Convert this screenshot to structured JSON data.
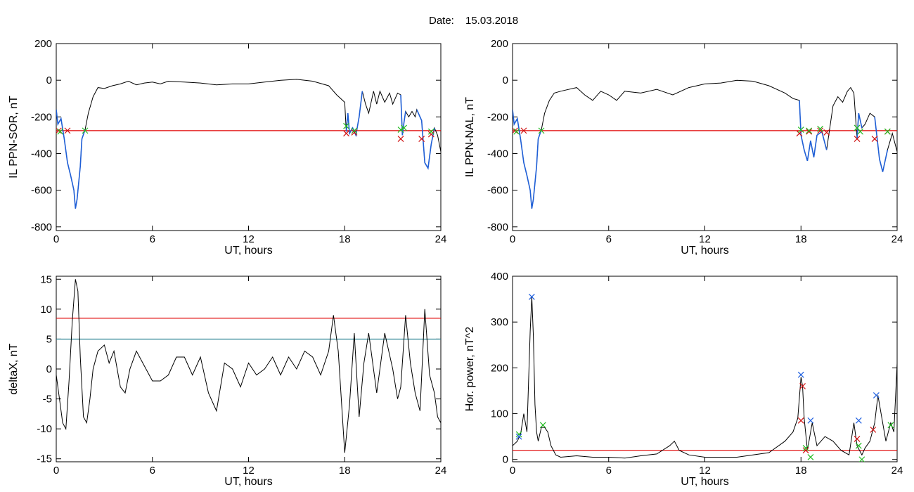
{
  "figure": {
    "date_label": "Date:",
    "date_value": "15.03.2018"
  },
  "colors": {
    "curve": "#000000",
    "highlight": "#1f5fd6",
    "threshold": "#e00000",
    "threshold2": "#1a7a8a",
    "marker_red": "#d01010",
    "marker_green": "#22bb22",
    "marker_blue": "#2060e0"
  },
  "chart_data": [
    {
      "type": "line",
      "ylabel": "IL PPN-SOR, nT",
      "xlabel": "UT, hours",
      "xlim": [
        0,
        24
      ],
      "ylim": [
        -820,
        200
      ],
      "xticks": [
        0,
        6,
        12,
        18,
        24
      ],
      "yticks": [
        -800,
        -600,
        -400,
        -200,
        0,
        200
      ],
      "threshold": -275,
      "series": [
        {
          "x": [
            0,
            0.1,
            0.3,
            0.5,
            0.7,
            0.9,
            1.1,
            1.2,
            1.3,
            1.5,
            1.6,
            1.8,
            2.0,
            2.3,
            2.6,
            3.0,
            3.5,
            4.0,
            4.5,
            5.0,
            5.5,
            6.0,
            6.5,
            7.0,
            8.0,
            9.0,
            10.0,
            11.0,
            12.0,
            13.0,
            14.0,
            15.0,
            16.0,
            17.0,
            17.5,
            18.0,
            18.1,
            18.2,
            18.3,
            18.5,
            18.7,
            18.9,
            19.1,
            19.3,
            19.5,
            19.8,
            20.0,
            20.2,
            20.5,
            20.8,
            21.0,
            21.3,
            21.5,
            21.6,
            21.7,
            21.8,
            22.0,
            22.2,
            22.4,
            22.5,
            22.8,
            23.0,
            23.2,
            23.4,
            23.6,
            23.8,
            24.0
          ],
          "y": [
            -160,
            -240,
            -210,
            -320,
            -450,
            -520,
            -600,
            -700,
            -650,
            -470,
            -320,
            -270,
            -180,
            -90,
            -40,
            -45,
            -30,
            -20,
            -5,
            -25,
            -15,
            -10,
            -20,
            -5,
            -10,
            -15,
            -25,
            -20,
            -20,
            -10,
            0,
            5,
            -5,
            -30,
            -80,
            -120,
            -280,
            -180,
            -290,
            -260,
            -300,
            -200,
            -60,
            -130,
            -180,
            -60,
            -130,
            -60,
            -120,
            -70,
            -130,
            -70,
            -80,
            -300,
            -230,
            -170,
            -200,
            -170,
            -200,
            -160,
            -220,
            -450,
            -480,
            -350,
            -260,
            -300,
            -390
          ]
        }
      ],
      "highlight_segments": [
        [
          0.0,
          1.8
        ],
        [
          18.1,
          19.1
        ],
        [
          21.5,
          21.9
        ],
        [
          22.5,
          23.6
        ]
      ],
      "red_markers": [
        [
          0.15,
          -275
        ],
        [
          0.7,
          -275
        ],
        [
          18.1,
          -290
        ],
        [
          18.6,
          -285
        ],
        [
          21.5,
          -320
        ],
        [
          22.8,
          -320
        ],
        [
          23.4,
          -295
        ]
      ],
      "green_markers": [
        [
          0.25,
          -280
        ],
        [
          1.8,
          -275
        ],
        [
          18.1,
          -250
        ],
        [
          18.6,
          -275
        ],
        [
          21.5,
          -270
        ],
        [
          21.7,
          -260
        ],
        [
          23.4,
          -280
        ]
      ]
    },
    {
      "type": "line",
      "ylabel": "IL PPN-NAL, nT",
      "xlabel": "UT, hours",
      "xlim": [
        0,
        24
      ],
      "ylim": [
        -820,
        200
      ],
      "xticks": [
        0,
        6,
        12,
        18,
        24
      ],
      "yticks": [
        -800,
        -600,
        -400,
        -200,
        0,
        200
      ],
      "threshold": -275,
      "series": [
        {
          "x": [
            0,
            0.1,
            0.3,
            0.5,
            0.7,
            0.9,
            1.1,
            1.2,
            1.3,
            1.5,
            1.6,
            1.8,
            2.0,
            2.3,
            2.6,
            3.0,
            3.5,
            4.0,
            4.5,
            5.0,
            5.5,
            6.0,
            6.5,
            7.0,
            8.0,
            9.0,
            10.0,
            11.0,
            12.0,
            13.0,
            14.0,
            15.0,
            16.0,
            17.0,
            17.5,
            17.9,
            18.0,
            18.2,
            18.4,
            18.6,
            18.8,
            19.0,
            19.3,
            19.6,
            20.0,
            20.3,
            20.6,
            20.9,
            21.1,
            21.3,
            21.5,
            21.6,
            21.8,
            22.0,
            22.3,
            22.6,
            22.9,
            23.1,
            23.4,
            23.7,
            24.0
          ],
          "y": [
            -160,
            -240,
            -210,
            -320,
            -450,
            -520,
            -600,
            -700,
            -650,
            -470,
            -320,
            -270,
            -180,
            -110,
            -70,
            -60,
            -50,
            -40,
            -80,
            -110,
            -60,
            -80,
            -110,
            -60,
            -70,
            -50,
            -80,
            -40,
            -20,
            -15,
            0,
            -5,
            -30,
            -70,
            -100,
            -110,
            -300,
            -380,
            -440,
            -330,
            -420,
            -300,
            -280,
            -380,
            -140,
            -90,
            -120,
            -60,
            -40,
            -70,
            -320,
            -180,
            -260,
            -240,
            -180,
            -200,
            -430,
            -500,
            -380,
            -290,
            -390
          ]
        }
      ],
      "highlight_segments": [
        [
          0.0,
          1.8
        ],
        [
          17.9,
          19.8
        ],
        [
          21.5,
          21.9
        ],
        [
          22.6,
          23.4
        ]
      ],
      "red_markers": [
        [
          0.15,
          -275
        ],
        [
          0.7,
          -275
        ],
        [
          17.9,
          -290
        ],
        [
          18.5,
          -280
        ],
        [
          19.2,
          -275
        ],
        [
          19.6,
          -285
        ],
        [
          21.5,
          -320
        ],
        [
          22.6,
          -320
        ],
        [
          23.4,
          -280
        ]
      ],
      "green_markers": [
        [
          0.25,
          -280
        ],
        [
          1.8,
          -275
        ],
        [
          18.0,
          -270
        ],
        [
          18.5,
          -275
        ],
        [
          19.2,
          -265
        ],
        [
          21.5,
          -260
        ],
        [
          21.7,
          -280
        ],
        [
          23.4,
          -280
        ]
      ]
    },
    {
      "type": "line",
      "ylabel": "deltaX, nT",
      "xlabel": "UT, hours",
      "xlim": [
        0,
        24
      ],
      "ylim": [
        -15.5,
        15.5
      ],
      "xticks": [
        0,
        6,
        12,
        18,
        24
      ],
      "yticks": [
        -15,
        -10,
        -5,
        0,
        5,
        10,
        15
      ],
      "thresholds": [
        8.5,
        5.0
      ],
      "series": [
        {
          "x": [
            0,
            0.2,
            0.4,
            0.6,
            0.8,
            1.0,
            1.2,
            1.35,
            1.5,
            1.7,
            1.9,
            2.1,
            2.3,
            2.6,
            3.0,
            3.3,
            3.6,
            4.0,
            4.3,
            4.6,
            5.0,
            5.4,
            6.0,
            6.5,
            7.0,
            7.5,
            8.0,
            8.5,
            9.0,
            9.5,
            10.0,
            10.5,
            11.0,
            11.5,
            12.0,
            12.5,
            13.0,
            13.5,
            14.0,
            14.5,
            15.0,
            15.5,
            16.0,
            16.5,
            17.0,
            17.3,
            17.6,
            18.0,
            18.3,
            18.6,
            18.9,
            19.2,
            19.5,
            20.0,
            20.5,
            21.0,
            21.3,
            21.5,
            21.8,
            22.1,
            22.4,
            22.7,
            23.0,
            23.3,
            23.6,
            23.8,
            24.0
          ],
          "y": [
            -1,
            -5,
            -9,
            -10,
            -2,
            8,
            15,
            13,
            2,
            -8,
            -9,
            -5,
            0,
            3,
            4,
            1,
            3,
            -3,
            -4,
            0,
            3,
            1,
            -2,
            -2,
            -1,
            2,
            2,
            -1,
            2,
            -4,
            -7,
            1,
            0,
            -3,
            1,
            -1,
            0,
            2,
            -1,
            2,
            0,
            3,
            2,
            -1,
            3,
            9,
            3,
            -14,
            -6,
            6,
            -8,
            1,
            6,
            -4,
            6,
            0,
            -5,
            -3,
            9,
            1,
            -4,
            -7,
            10,
            -1,
            -4,
            -8,
            -9
          ]
        }
      ]
    },
    {
      "type": "line",
      "ylabel": "Hor. power, nT^2",
      "xlabel": "UT, hours",
      "xlim": [
        0,
        24
      ],
      "ylim": [
        -5,
        400
      ],
      "xticks": [
        0,
        6,
        12,
        18,
        24
      ],
      "yticks": [
        0,
        100,
        200,
        300,
        400
      ],
      "threshold": 20,
      "series": [
        {
          "x": [
            0,
            0.3,
            0.5,
            0.7,
            0.9,
            1.0,
            1.1,
            1.2,
            1.3,
            1.4,
            1.5,
            1.6,
            1.8,
            2.0,
            2.2,
            2.4,
            2.7,
            3.0,
            4.0,
            5.0,
            6.0,
            7.0,
            8.0,
            9.0,
            9.8,
            10.1,
            10.4,
            11.0,
            12.0,
            13.0,
            14.0,
            15.0,
            16.0,
            17.0,
            17.5,
            17.8,
            18.0,
            18.1,
            18.2,
            18.4,
            18.7,
            19.0,
            19.5,
            20.0,
            20.5,
            21.0,
            21.3,
            21.5,
            21.8,
            22.0,
            22.3,
            22.6,
            22.8,
            23.0,
            23.3,
            23.6,
            23.8,
            24.0
          ],
          "y": [
            30,
            40,
            55,
            100,
            60,
            170,
            280,
            355,
            270,
            120,
            60,
            40,
            70,
            70,
            60,
            30,
            10,
            5,
            8,
            5,
            5,
            3,
            8,
            12,
            30,
            40,
            20,
            10,
            5,
            5,
            5,
            10,
            15,
            40,
            60,
            90,
            180,
            160,
            90,
            20,
            80,
            30,
            50,
            40,
            20,
            10,
            80,
            30,
            10,
            25,
            40,
            80,
            140,
            100,
            40,
            80,
            60,
            210
          ]
        }
      ],
      "red_markers": [
        [
          18.0,
          85
        ],
        [
          18.1,
          160
        ],
        [
          18.3,
          20
        ],
        [
          21.5,
          45
        ],
        [
          22.5,
          65
        ]
      ],
      "green_markers": [
        [
          0.4,
          55
        ],
        [
          1.9,
          75
        ],
        [
          18.3,
          25
        ],
        [
          18.6,
          5
        ],
        [
          21.6,
          30
        ],
        [
          21.8,
          0
        ],
        [
          23.6,
          75
        ]
      ],
      "blue_markers": [
        [
          0.4,
          50
        ],
        [
          1.2,
          355
        ],
        [
          18.0,
          185
        ],
        [
          18.6,
          85
        ],
        [
          21.6,
          85
        ],
        [
          22.7,
          140
        ]
      ]
    }
  ]
}
